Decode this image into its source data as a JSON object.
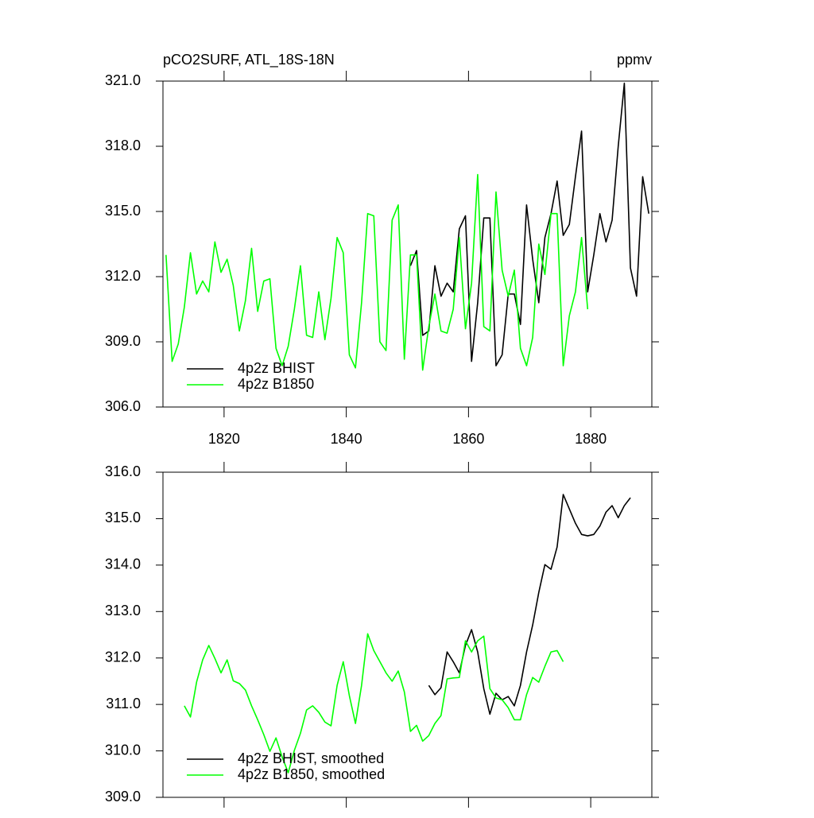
{
  "chart_data": [
    {
      "type": "line",
      "title": "pCO2SURF, ATL_18S-18N",
      "units": "ppmv",
      "xlim": [
        1810,
        1890
      ],
      "xticks": [
        1820,
        1840,
        1860,
        1880
      ],
      "xtick_labels": true,
      "ylim": [
        306,
        321
      ],
      "yticks": [
        {
          "value": 306,
          "label": "306.0"
        },
        {
          "value": 309,
          "label": "309.0"
        },
        {
          "value": 312,
          "label": "312.0"
        },
        {
          "value": 315,
          "label": "315.0"
        },
        {
          "value": 318,
          "label": "318.0"
        },
        {
          "value": 321,
          "label": "321.0"
        }
      ],
      "legend": "lower left",
      "series": [
        {
          "name": "4p2z BHIST",
          "color": "#000000",
          "x": [
            1850.5,
            1851.5,
            1852.5,
            1853.5,
            1854.5,
            1855.5,
            1856.5,
            1857.5,
            1858.5,
            1859.5,
            1860.5,
            1861.5,
            1862.5,
            1863.5,
            1864.5,
            1865.5,
            1866.5,
            1867.5,
            1868.5,
            1869.5,
            1870.5,
            1871.5,
            1872.5,
            1873.5,
            1874.5,
            1875.5,
            1876.5,
            1877.5,
            1878.5,
            1879.5,
            1880.5,
            1881.5,
            1882.5,
            1883.5,
            1884.5,
            1885.5,
            1886.5,
            1887.5,
            1888.5,
            1889.5
          ],
          "values": [
            312.5,
            313.2,
            309.3,
            309.5,
            312.5,
            311.1,
            311.7,
            311.3,
            314.2,
            314.8,
            308.1,
            310.8,
            314.7,
            314.7,
            307.9,
            308.4,
            311.2,
            311.2,
            309.8,
            315.3,
            312.8,
            310.8,
            313.8,
            314.9,
            316.4,
            313.9,
            314.4,
            316.6,
            318.7,
            311.3,
            313.0,
            314.9,
            313.6,
            314.6,
            318.0,
            320.9,
            312.4,
            311.1,
            316.6,
            314.9
          ]
        },
        {
          "name": "4p2z B1850",
          "color": "#00ff00",
          "x": [
            1810.5,
            1811.5,
            1812.5,
            1813.5,
            1814.5,
            1815.5,
            1816.5,
            1817.5,
            1818.5,
            1819.5,
            1820.5,
            1821.5,
            1822.5,
            1823.5,
            1824.5,
            1825.5,
            1826.5,
            1827.5,
            1828.5,
            1829.5,
            1830.5,
            1831.5,
            1832.5,
            1833.5,
            1834.5,
            1835.5,
            1836.5,
            1837.5,
            1838.5,
            1839.5,
            1840.5,
            1841.5,
            1842.5,
            1843.5,
            1844.5,
            1845.5,
            1846.5,
            1847.5,
            1848.5,
            1849.5,
            1850.5,
            1851.5,
            1852.5,
            1853.5,
            1854.5,
            1855.5,
            1856.5,
            1857.5,
            1858.5,
            1859.5,
            1860.5,
            1861.5,
            1862.5,
            1863.5,
            1864.5,
            1865.5,
            1866.5,
            1867.5,
            1868.5,
            1869.5,
            1870.5,
            1871.5,
            1872.5,
            1873.5,
            1874.5,
            1875.5,
            1876.5,
            1877.5,
            1878.5,
            1879.5
          ],
          "values": [
            313.0,
            308.1,
            308.9,
            310.6,
            313.1,
            311.2,
            311.8,
            311.3,
            313.6,
            312.2,
            312.8,
            311.6,
            309.5,
            310.9,
            313.3,
            310.4,
            311.8,
            311.9,
            308.7,
            307.9,
            308.8,
            310.5,
            312.5,
            309.3,
            309.2,
            311.3,
            309.1,
            311.0,
            313.8,
            313.1,
            308.4,
            307.8,
            310.8,
            314.9,
            314.8,
            309.0,
            308.6,
            314.6,
            315.3,
            308.2,
            313.0,
            313.0,
            307.7,
            309.7,
            311.2,
            309.5,
            309.4,
            310.5,
            313.8,
            309.6,
            311.7,
            316.7,
            309.7,
            309.5,
            315.9,
            312.3,
            311.1,
            312.3,
            308.7,
            307.9,
            309.2,
            313.5,
            312.1,
            314.9,
            314.9,
            307.9,
            310.2,
            311.3,
            313.8,
            310.5
          ]
        }
      ]
    },
    {
      "type": "line",
      "xlim": [
        1810,
        1890
      ],
      "xticks": [
        1820,
        1840,
        1860,
        1880
      ],
      "xtick_labels": false,
      "ylim": [
        309,
        316
      ],
      "yticks": [
        {
          "value": 309,
          "label": "309.0"
        },
        {
          "value": 310,
          "label": "310.0"
        },
        {
          "value": 311,
          "label": "311.0"
        },
        {
          "value": 312,
          "label": "312.0"
        },
        {
          "value": 313,
          "label": "313.0"
        },
        {
          "value": 314,
          "label": "314.0"
        },
        {
          "value": 315,
          "label": "315.0"
        },
        {
          "value": 316,
          "label": "316.0"
        }
      ],
      "legend": "lower left",
      "series": [
        {
          "name": "4p2z BHIST, smoothed",
          "color": "#000000",
          "x": [
            1853.5,
            1854.5,
            1855.5,
            1856.5,
            1857.5,
            1858.5,
            1859.5,
            1860.5,
            1861.5,
            1862.5,
            1863.5,
            1864.5,
            1865.5,
            1866.5,
            1867.5,
            1868.5,
            1869.5,
            1870.5,
            1871.5,
            1872.5,
            1873.5,
            1874.5,
            1875.5,
            1876.5,
            1877.5,
            1878.5,
            1879.5,
            1880.5,
            1881.5,
            1882.5,
            1883.5,
            1884.5,
            1885.5,
            1886.5
          ],
          "values": [
            311.41,
            311.21,
            311.36,
            312.13,
            311.92,
            311.68,
            312.27,
            312.61,
            312.13,
            311.34,
            310.79,
            311.24,
            311.1,
            311.17,
            310.97,
            311.41,
            312.13,
            312.71,
            313.41,
            314.01,
            313.91,
            314.39,
            315.52,
            315.21,
            314.9,
            314.66,
            314.63,
            314.66,
            314.84,
            315.14,
            315.28,
            315.02,
            315.28,
            315.45
          ]
        },
        {
          "name": "4p2z B1850, smoothed",
          "color": "#00ff00",
          "x": [
            1813.5,
            1814.5,
            1815.5,
            1816.5,
            1817.5,
            1818.5,
            1819.5,
            1820.5,
            1821.5,
            1822.5,
            1823.5,
            1824.5,
            1825.5,
            1826.5,
            1827.5,
            1828.5,
            1829.5,
            1830.5,
            1831.5,
            1832.5,
            1833.5,
            1834.5,
            1835.5,
            1836.5,
            1837.5,
            1838.5,
            1839.5,
            1840.5,
            1841.5,
            1842.5,
            1843.5,
            1844.5,
            1845.5,
            1846.5,
            1847.5,
            1848.5,
            1849.5,
            1850.5,
            1851.5,
            1852.5,
            1853.5,
            1854.5,
            1855.5,
            1856.5,
            1857.5,
            1858.5,
            1859.5,
            1860.5,
            1861.5,
            1862.5,
            1863.5,
            1864.5,
            1865.5,
            1866.5,
            1867.5,
            1868.5,
            1869.5,
            1870.5,
            1871.5,
            1872.5,
            1873.5,
            1874.5,
            1875.5
          ],
          "values": [
            310.97,
            310.73,
            311.48,
            311.96,
            312.27,
            311.99,
            311.68,
            311.96,
            311.51,
            311.45,
            311.31,
            310.97,
            310.67,
            310.35,
            309.99,
            310.28,
            309.87,
            309.53,
            310.01,
            310.38,
            310.88,
            310.97,
            310.83,
            310.62,
            310.54,
            311.41,
            311.92,
            311.19,
            310.59,
            311.41,
            312.52,
            312.16,
            311.92,
            311.68,
            311.5,
            311.72,
            311.27,
            310.42,
            310.55,
            310.21,
            310.33,
            310.59,
            310.76,
            311.55,
            311.57,
            311.58,
            312.37,
            312.13,
            312.37,
            312.47,
            311.34,
            311.14,
            311.1,
            310.93,
            310.67,
            310.67,
            311.21,
            311.58,
            311.48,
            311.82,
            312.13,
            312.16,
            311.92
          ]
        }
      ]
    }
  ]
}
